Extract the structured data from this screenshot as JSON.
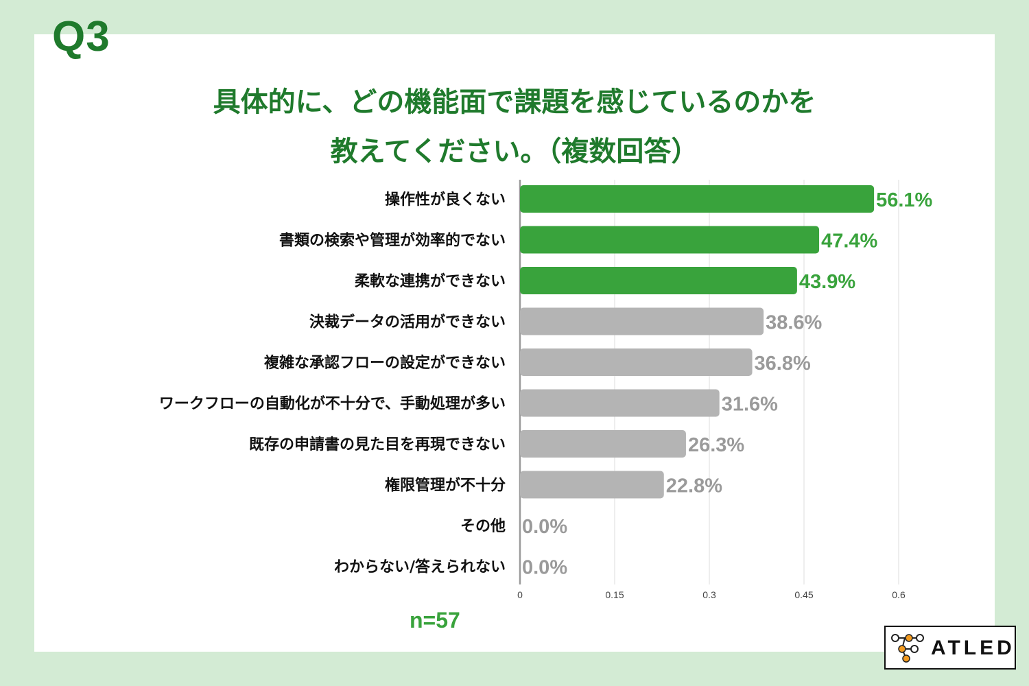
{
  "question_label": "Q3",
  "title_lines": [
    "具体的に、どの機能面で課題を感じているのかを",
    "教えてください。（複数回答）"
  ],
  "sample_size": "n=57",
  "logo_text": "ATLED",
  "colors": {
    "highlight": "#39a33c",
    "other": "#b4b4b4",
    "highlight_text": "#39a33c",
    "other_text": "#9a9a9a",
    "title": "#1f7a2c",
    "background": "#d3ebd4",
    "logo_accent": "#f39a1f"
  },
  "chart_data": {
    "type": "bar",
    "orientation": "horizontal",
    "categories": [
      "操作性が良くない",
      "書類の検索や管理が効率的でない",
      "柔軟な連携ができない",
      "決裁データの活用ができない",
      "複雑な承認フローの設定ができない",
      "ワークフローの自動化が不十分で、手動処理が多い",
      "既存の申請書の見た目を再現できない",
      "権限管理が不十分",
      "その他",
      "わからない/答えられない"
    ],
    "values": [
      0.561,
      0.474,
      0.439,
      0.386,
      0.368,
      0.316,
      0.263,
      0.228,
      0.0,
      0.0
    ],
    "value_labels": [
      "56.1%",
      "47.4%",
      "43.9%",
      "38.6%",
      "36.8%",
      "31.6%",
      "26.3%",
      "22.8%",
      "0.0%",
      "0.0%"
    ],
    "highlighted_count": 3,
    "xlim": [
      0,
      0.6
    ],
    "x_ticks": [
      0,
      0.15,
      0.3,
      0.45,
      0.6
    ],
    "x_tick_labels": [
      "0",
      "0.15",
      "0.3",
      "0.45",
      "0.6"
    ],
    "grid": true,
    "legend": "none"
  }
}
